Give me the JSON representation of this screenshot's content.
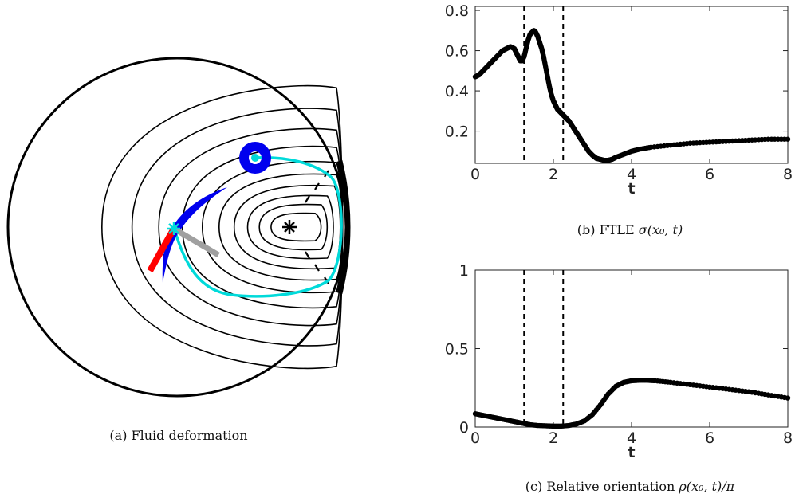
{
  "panel_a": {
    "caption": "(a)  Fluid deformation",
    "colors": {
      "outline": "#000000",
      "contours": "#000000",
      "trajectory": "#00dada",
      "blob": "#0000ee",
      "red_segment": "#ff0000",
      "grey_segment": "#a0a0a0",
      "marker": "#00dada"
    }
  },
  "chart_data": [
    {
      "type": "scatter",
      "caption": "(b) FTLE σ(x₀, t)",
      "xlabel": "t",
      "ylabel": "",
      "xlim": [
        0,
        8
      ],
      "ylim": [
        0.04,
        0.82
      ],
      "xticks": [
        "0",
        "2",
        "4",
        "6",
        "8"
      ],
      "yticks": [
        "0.2",
        "0.4",
        "0.6",
        "0.8"
      ],
      "ytick_values": [
        0.2,
        0.4,
        0.6,
        0.8
      ],
      "vlines": [
        1.25,
        2.25
      ],
      "grid": false,
      "x": [
        0,
        0.1,
        0.2,
        0.3,
        0.4,
        0.5,
        0.6,
        0.7,
        0.8,
        0.9,
        1.0,
        1.05,
        1.1,
        1.15,
        1.2,
        1.25,
        1.3,
        1.35,
        1.4,
        1.45,
        1.5,
        1.55,
        1.6,
        1.65,
        1.7,
        1.75,
        1.8,
        1.85,
        1.9,
        1.95,
        2.0,
        2.05,
        2.1,
        2.15,
        2.2,
        2.25,
        2.3,
        2.35,
        2.4,
        2.5,
        2.6,
        2.7,
        2.8,
        2.9,
        3.0,
        3.1,
        3.2,
        3.3,
        3.4,
        3.5,
        3.6,
        3.8,
        4.0,
        4.2,
        4.5,
        5.0,
        5.5,
        6.0,
        6.5,
        7.0,
        7.5,
        8.0
      ],
      "y": [
        0.47,
        0.48,
        0.5,
        0.52,
        0.54,
        0.56,
        0.58,
        0.6,
        0.61,
        0.62,
        0.61,
        0.59,
        0.57,
        0.55,
        0.55,
        0.57,
        0.61,
        0.65,
        0.68,
        0.69,
        0.7,
        0.69,
        0.67,
        0.64,
        0.61,
        0.57,
        0.52,
        0.47,
        0.42,
        0.38,
        0.35,
        0.33,
        0.31,
        0.3,
        0.29,
        0.28,
        0.27,
        0.26,
        0.25,
        0.22,
        0.19,
        0.16,
        0.13,
        0.1,
        0.08,
        0.065,
        0.06,
        0.055,
        0.055,
        0.06,
        0.07,
        0.085,
        0.1,
        0.11,
        0.12,
        0.13,
        0.14,
        0.145,
        0.15,
        0.155,
        0.16,
        0.16
      ]
    },
    {
      "type": "scatter",
      "caption": "(c) Relative orientation ρ(x₀, t)/π",
      "xlabel": "t",
      "ylabel": "",
      "xlim": [
        0,
        8
      ],
      "ylim": [
        0,
        1
      ],
      "xticks": [
        "0",
        "2",
        "4",
        "6",
        "8"
      ],
      "yticks": [
        "0",
        "0.5",
        "1"
      ],
      "ytick_values": [
        0,
        0.5,
        1
      ],
      "vlines": [
        1.25,
        2.25
      ],
      "grid": false,
      "x": [
        0,
        0.2,
        0.4,
        0.6,
        0.8,
        1.0,
        1.2,
        1.3,
        1.4,
        1.6,
        1.8,
        2.0,
        2.2,
        2.4,
        2.6,
        2.8,
        3.0,
        3.2,
        3.4,
        3.6,
        3.8,
        4.0,
        4.2,
        4.4,
        4.6,
        5.0,
        5.5,
        6.0,
        6.5,
        7.0,
        7.5,
        8.0
      ],
      "y": [
        0.085,
        0.075,
        0.065,
        0.055,
        0.045,
        0.035,
        0.025,
        0.02,
        0.015,
        0.01,
        0.008,
        0.006,
        0.006,
        0.01,
        0.02,
        0.04,
        0.08,
        0.14,
        0.21,
        0.26,
        0.285,
        0.295,
        0.298,
        0.298,
        0.295,
        0.285,
        0.27,
        0.255,
        0.24,
        0.225,
        0.205,
        0.185
      ]
    }
  ],
  "captions": {
    "b": "(b)  FTLE",
    "b_math": "σ(x₀, t)",
    "c": "(c)  Relative orientation",
    "c_math": "ρ(x₀, t)/π"
  }
}
